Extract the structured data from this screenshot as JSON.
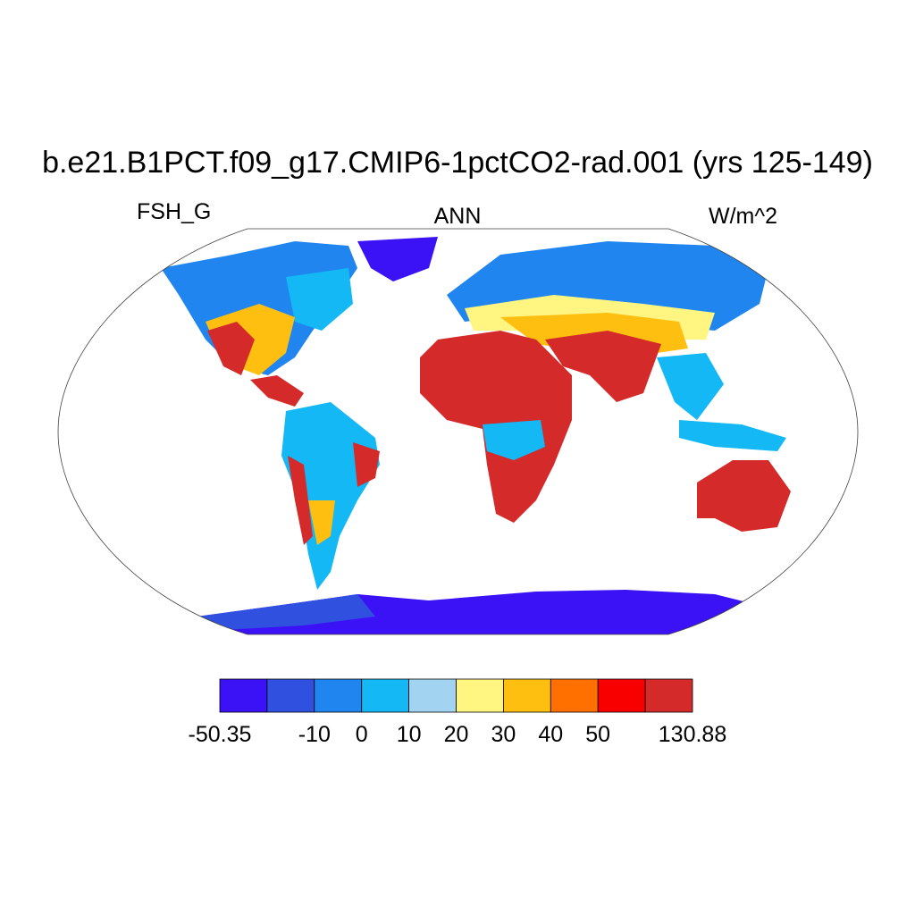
{
  "title": "b.e21.B1PCT.f09_g17.CMIP6-1pctCO2-rad.001 (yrs 125-149)",
  "left_string": "FSH_G",
  "center_string": "ANN",
  "right_string": "W/m^2",
  "colorbar": {
    "colors": [
      "#3a12f5",
      "#3050e0",
      "#2185f0",
      "#13b8f5",
      "#a2d4f2",
      "#fff580",
      "#ffbf10",
      "#ff7000",
      "#f80000",
      "#d42a2a"
    ],
    "labels": [
      -50.35,
      null,
      -10,
      0,
      10,
      20,
      30,
      40,
      50,
      null,
      130.88
    ]
  }
}
